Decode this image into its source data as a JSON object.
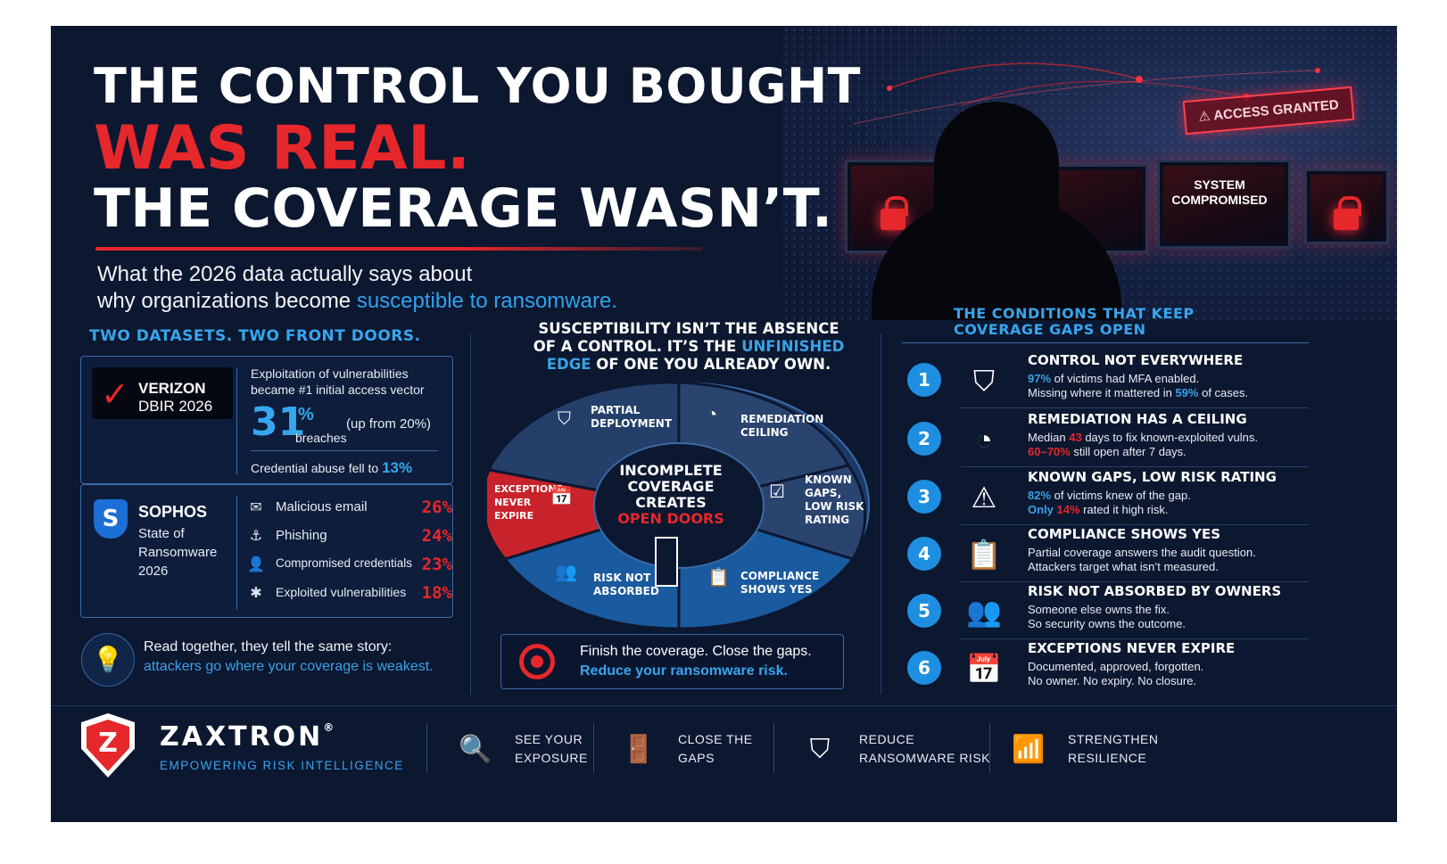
{
  "header": {
    "line1": "THE CONTROL YOU BOUGHT",
    "line2": "WAS REAL.",
    "line3": "THE COVERAGE WASN’T.",
    "subtitle_a": "What the 2026 data actually says about",
    "subtitle_b": "why organizations become ",
    "subtitle_hl": "susceptible to ransomware."
  },
  "hero": {
    "badge_access": "ACCESS GRANTED",
    "badge_system_1": "SYSTEM",
    "badge_system_2": "COMPROMISED"
  },
  "left": {
    "heading": "TWO DATASETS. TWO FRONT DOORS.",
    "verizon": {
      "name": "VERIZON",
      "report": "DBIR 2026",
      "desc_1": "Exploitation of vulnerabilities",
      "desc_2": "became #1 initial access vector",
      "big_value": "31",
      "pct": "%",
      "big_label": "breaches",
      "up_from": "(up from 20%)",
      "cred_text": "Credential abuse fell to ",
      "cred_value": "13%"
    },
    "sophos": {
      "name": "SOPHOS",
      "report_1": "State of",
      "report_2": "Ransomware",
      "report_3": "2026",
      "stats": [
        {
          "icon": "envelope-icon",
          "label": "Malicious email",
          "value": "26%"
        },
        {
          "icon": "fishhook-icon",
          "label": "Phishing",
          "value": "24%"
        },
        {
          "icon": "user-lock-icon",
          "label": "Compromised credentials",
          "value": "23%"
        },
        {
          "icon": "bug-icon",
          "label": "Exploited vulnerabilities",
          "value": "18%"
        }
      ]
    },
    "story_1": "Read together, they tell the same story:",
    "story_2": "attackers go where your coverage is weakest."
  },
  "center": {
    "head_1": "SUSCEPTIBILITY ISN’T THE ABSENCE",
    "head_2a": "OF A CONTROL. IT’S THE ",
    "head_2b": "UNFINISHED",
    "head_3a": "EDGE",
    "head_3b": " OF ONE YOU ALREADY OWN.",
    "hub_1": "INCOMPLETE",
    "hub_2": "COVERAGE",
    "hub_3": "CREATES",
    "hub_4": "OPEN DOORS",
    "segments": [
      {
        "l1": "PARTIAL",
        "l2": "DEPLOYMENT"
      },
      {
        "l1": "REMEDIATION",
        "l2": "CEILING"
      },
      {
        "l1": "KNOWN",
        "l2": "GAPS,",
        "l3": "LOW RISK",
        "l4": "RATING"
      },
      {
        "l1": "COMPLIANCE",
        "l2": "SHOWS YES"
      },
      {
        "l1": "RISK NOT",
        "l2": "ABSORBED"
      },
      {
        "l1": "EXCEPTIONS",
        "l2": "NEVER",
        "l3": "EXPIRE"
      }
    ],
    "cta_1": "Finish the coverage. Close the gaps.",
    "cta_2": "Reduce your ransomware risk."
  },
  "right": {
    "head_1": "THE CONDITIONS THAT KEEP",
    "head_2": "COVERAGE GAPS OPEN",
    "conditions": [
      {
        "num": "1",
        "title": "CONTROL NOT EVERYWHERE"
      },
      {
        "num": "2",
        "title": "REMEDIATION HAS A CEILING"
      },
      {
        "num": "3",
        "title": "KNOWN GAPS, LOW RISK RATING"
      },
      {
        "num": "4",
        "title": "COMPLIANCE SHOWS YES",
        "line1": "Partial coverage answers the audit question.",
        "line2": "Attackers target what isn’t measured."
      },
      {
        "num": "5",
        "title": "RISK NOT ABSORBED BY OWNERS",
        "line1": "Someone else owns the fix.",
        "line2": "So security owns the outcome."
      },
      {
        "num": "6",
        "title": "EXCEPTIONS NEVER EXPIRE",
        "line1": "Documented, approved, forgotten.",
        "line2": "No owner. No expiry. No closure."
      }
    ],
    "c1_a": "97%",
    "c1_b": " of victims had MFA enabled.",
    "c1_c": "Missing where it mattered in ",
    "c1_d": "59%",
    "c1_e": " of cases.",
    "c2_a": "Median ",
    "c2_b": "43",
    "c2_c": " days to fix known-exploited vulns.",
    "c2_d": "60–70%",
    "c2_e": " still open after 7 days.",
    "c3_a": "82%",
    "c3_b": " of victims knew of the gap.",
    "c3_c": "Only ",
    "c3_d": "14%",
    "c3_e": " rated it high risk."
  },
  "footer": {
    "brand": "ZAXTRON",
    "reg": "®",
    "tagline": "EMPOWERING RISK INTELLIGENCE",
    "items": [
      {
        "icon": "magnifier-icon",
        "l1": "SEE YOUR",
        "l2": "EXPOSURE"
      },
      {
        "icon": "door-icon",
        "l1": "CLOSE THE",
        "l2": "GAPS"
      },
      {
        "icon": "shield-icon",
        "l1": "REDUCE",
        "l2": "RANSOMWARE RISK"
      },
      {
        "icon": "bar-chart-icon",
        "l1": "STRENGTHEN",
        "l2": "RESILIENCE"
      }
    ]
  },
  "colors": {
    "accent_red": "#e6272b",
    "accent_blue": "#37a6ee",
    "background": "#0c1730"
  }
}
